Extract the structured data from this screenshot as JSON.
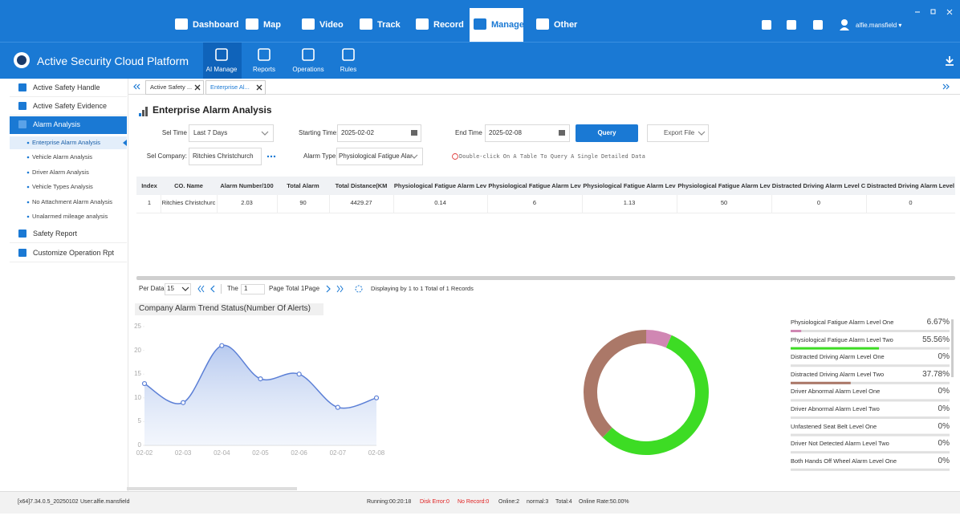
{
  "nav": {
    "items": [
      "Dashboard",
      "Map",
      "Video",
      "Track",
      "Record",
      "Manage",
      "Other"
    ],
    "user": "alfie.mansfield ▾"
  },
  "platform": "Active Security Cloud Platform",
  "modules": [
    "AI Manage",
    "Reports",
    "Operations",
    "Rules"
  ],
  "sidebar": {
    "items": [
      "Active Safety Handle",
      "Active Safety Evidence",
      "Alarm Analysis"
    ],
    "sub_items": [
      "Enterprise Alarm Analysis",
      "Vehicle Alarm Analysis",
      "Driver Alarm Analysis",
      "Vehicle Types Analysis",
      "No Attachment Alarm Analysis",
      "Unalarmed mileage analysis"
    ],
    "items_after": [
      "Safety Report",
      "Customize Operation Rpt"
    ]
  },
  "tabs": [
    "Active Safety ...",
    "Enterprise Al..."
  ],
  "page_title": "Enterprise Alarm Analysis",
  "form": {
    "sel_time_label": "Sel Time",
    "sel_time": "Last 7 Days",
    "start_label": "Starting Time:",
    "start": "2025-02-02",
    "end_label": "End Time",
    "end": "2025-02-08",
    "query": "Query",
    "export": "Export File",
    "company_label": "Sel Company:",
    "company": "Ritchies Christchurch",
    "alarm_type_label": "Alarm Type:",
    "alarm_type": "Physiological Fatigue Alar",
    "hint": "Double-click On A Table To Query A Single Detailed Data"
  },
  "table": {
    "headers": [
      "Index",
      "CO. Name",
      "Alarm Number/100",
      "Total Alarm",
      "Total Distance(KM",
      "Physiological Fatigue Alarm Lev",
      "Physiological Fatigue Alarm Lev",
      "Physiological Fatigue Alarm Lev",
      "Physiological Fatigue Alarm Lev",
      "Distracted Driving Alarm Level C",
      "Distracted Driving Alarm Level"
    ],
    "rows": [
      [
        "1",
        "Ritchies Christchurc",
        "2.03",
        "90",
        "4429.27",
        "0.14",
        "6",
        "1.13",
        "50",
        "0",
        "0"
      ]
    ]
  },
  "pagination": {
    "per_data_label": "Per Data",
    "per_data": "15",
    "the": "The",
    "page": "1",
    "page_total": "Page Total 1Page",
    "status": "Displaying by 1 to 1 Total of 1 Records"
  },
  "chart_data": [
    {
      "type": "line",
      "title": "Company Alarm Trend Status(Number Of Alerts)",
      "x": [
        "02-02",
        "02-03",
        "02-04",
        "02-05",
        "02-06",
        "02-07",
        "02-08"
      ],
      "values": [
        13,
        9,
        21,
        14,
        15,
        8,
        10
      ],
      "color": "#5b7fd6",
      "ylim": [
        0,
        25
      ],
      "yticks": [
        0,
        5,
        10,
        15,
        20,
        25
      ]
    },
    {
      "type": "pie",
      "categories": [
        "Physiological Fatigue Alarm Level One",
        "Physiological Fatigue Alarm Level Two",
        "Distracted Driving Alarm Level One",
        "Distracted Driving Alarm Level Two",
        "Driver Abnormal Alarm Level One",
        "Driver Abnormal Alarm Level Two",
        "Unfastened Seat Belt Level One",
        "Driver Not Detected Alarm Level Two",
        "Both Hands Off Wheel Alarm Level One"
      ],
      "values": [
        6.67,
        55.56,
        0,
        37.78,
        0,
        0,
        0,
        0,
        0
      ],
      "value_labels": [
        "6.67%",
        "55.56%",
        "0%",
        "37.78%",
        "0%",
        "0%",
        "0%",
        "0%",
        "0%"
      ],
      "colors": [
        "#d087b3",
        "#3ddc24",
        "#5b8ff9",
        "#ab7868",
        "#f6bd16",
        "#6dc8ec",
        "#945fb9",
        "#ff9845",
        "#1e9493"
      ]
    }
  ],
  "status_bar": {
    "version": "[x64]7.34.0.5_20250102",
    "user": "User:alfie.mansfield",
    "running": "Running:00:20:18",
    "disk_error": "Disk Error:0",
    "no_record": "No Record:0",
    "online": "Online:2",
    "normal": "normal:3",
    "total": "Total:4",
    "online_rate": "Online Rate:50.00%"
  }
}
